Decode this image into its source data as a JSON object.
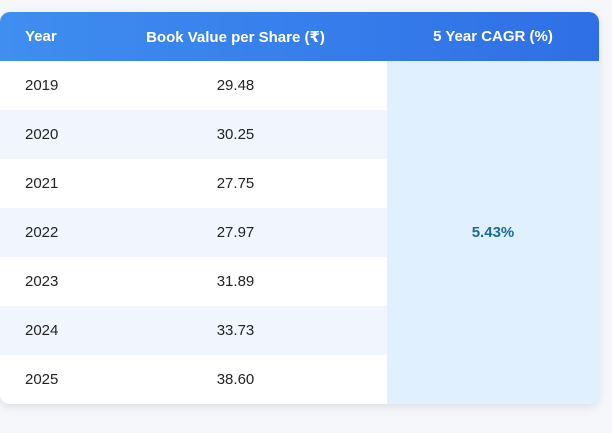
{
  "colors": {
    "header_start": "#3f8ef0",
    "header_end": "#2f6fe6",
    "header_text": "#ffffff",
    "row_alt": "#f1f6fe",
    "cagr_bg": "#e0f0fe",
    "cagr_text": "#1a6b96"
  },
  "chart_data": {
    "type": "table",
    "columns": [
      "Year",
      "Book Value per Share (₹)",
      "5 Year CAGR (%)"
    ],
    "rows": [
      {
        "year": "2019",
        "book_value": "29.48"
      },
      {
        "year": "2020",
        "book_value": "30.25"
      },
      {
        "year": "2021",
        "book_value": "27.75"
      },
      {
        "year": "2022",
        "book_value": "27.97"
      },
      {
        "year": "2023",
        "book_value": "31.89"
      },
      {
        "year": "2024",
        "book_value": "33.73"
      },
      {
        "year": "2025",
        "book_value": "38.60"
      }
    ],
    "cagr": "5.43%"
  }
}
